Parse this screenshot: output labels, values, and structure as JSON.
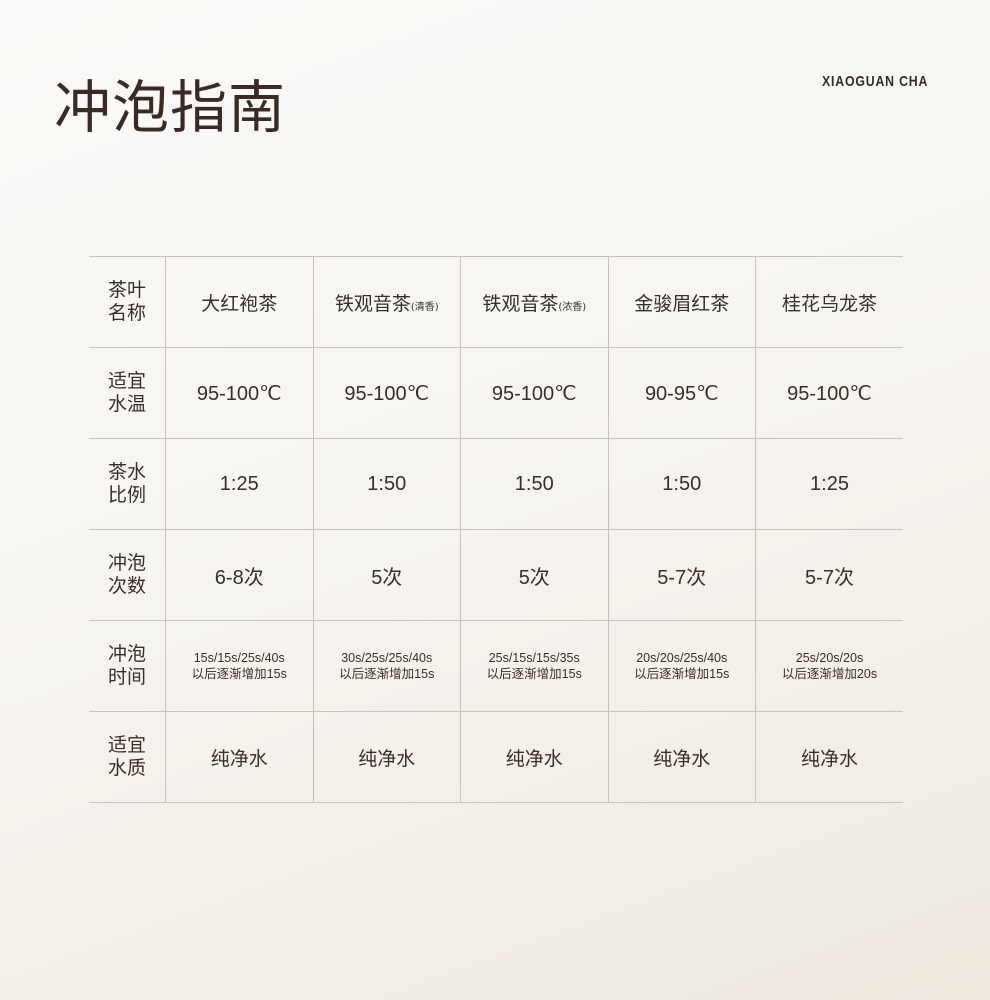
{
  "title": "冲泡指南",
  "brand": "XIAOGUAN CHA",
  "rows": [
    {
      "label": [
        "茶叶",
        "名称"
      ],
      "cells": [
        {
          "main": "大红袍茶",
          "sub": ""
        },
        {
          "main": "铁观音茶",
          "sub": "(清香)"
        },
        {
          "main": "铁观音茶",
          "sub": "(浓香)"
        },
        {
          "main": "金骏眉红茶",
          "sub": ""
        },
        {
          "main": "桂花乌龙茶",
          "sub": ""
        }
      ]
    },
    {
      "label": [
        "适宜",
        "水温"
      ],
      "cells": [
        "95-100℃",
        "95-100℃",
        "95-100℃",
        "90-95℃",
        "95-100℃"
      ]
    },
    {
      "label": [
        "茶水",
        "比例"
      ],
      "cells": [
        "1:25",
        "1:50",
        "1:50",
        "1:50",
        "1:25"
      ]
    },
    {
      "label": [
        "冲泡",
        "次数"
      ],
      "cells": [
        "6-8次",
        "5次",
        "5次",
        "5-7次",
        "5-7次"
      ]
    },
    {
      "label": [
        "冲泡",
        "时间"
      ],
      "cells": [
        [
          "15s/15s/25s/40s",
          "以后逐渐增加15s"
        ],
        [
          "30s/25s/25s/40s",
          "以后逐渐增加15s"
        ],
        [
          "25s/15s/15s/35s",
          "以后逐渐增加15s"
        ],
        [
          "20s/20s/25s/40s",
          "以后逐渐增加15s"
        ],
        [
          "25s/20s/20s",
          "以后逐渐增加20s"
        ]
      ]
    },
    {
      "label": [
        "适宜",
        "水质"
      ],
      "cells": [
        "纯净水",
        "纯净水",
        "纯净水",
        "纯净水",
        "纯净水"
      ]
    }
  ]
}
